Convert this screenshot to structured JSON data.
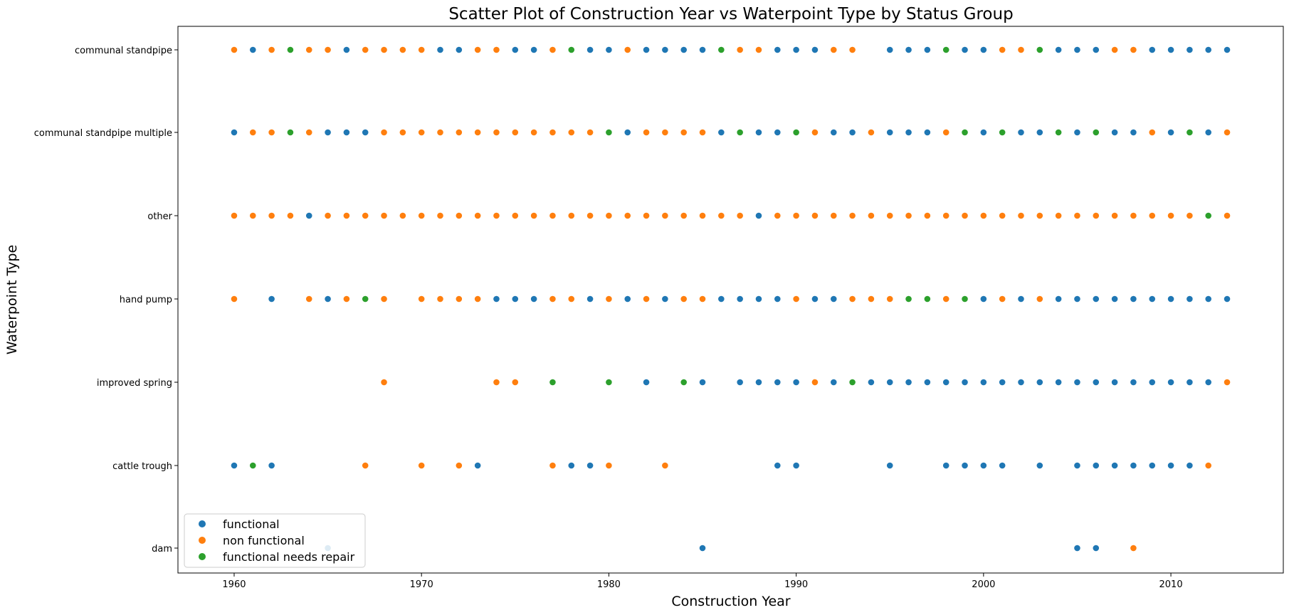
{
  "chart_data": {
    "type": "scatter",
    "title": "Scatter Plot of Construction Year vs Waterpoint Type by Status Group",
    "xlabel": "Construction Year",
    "ylabel": "Waterpoint Type",
    "xlim": [
      1957,
      2016
    ],
    "xticks": [
      1960,
      1970,
      1980,
      1990,
      2000,
      2010
    ],
    "categories": [
      "communal standpipe",
      "communal standpipe multiple",
      "other",
      "hand pump",
      "improved spring",
      "cattle trough",
      "dam"
    ],
    "legend_position": "lower-left",
    "grid": false,
    "series": [
      {
        "name": "functional",
        "color": "#1f77b4",
        "points": {
          "communal standpipe": [
            1961,
            1966,
            1971,
            1972,
            1975,
            1976,
            1979,
            1980,
            1982,
            1983,
            1984,
            1985,
            1989,
            1990,
            1991,
            1995,
            1996,
            1997,
            1999,
            2000,
            2004,
            2005,
            2006,
            2009,
            2010,
            2011,
            2012,
            2013
          ],
          "communal standpipe multiple": [
            1960,
            1965,
            1966,
            1967,
            1981,
            1986,
            1988,
            1989,
            1992,
            1993,
            1995,
            1996,
            1997,
            2000,
            2002,
            2003,
            2005,
            2006,
            2007,
            2008,
            2010,
            2012
          ],
          "other": [
            1964,
            1988
          ],
          "hand pump": [
            1962,
            1965,
            1974,
            1975,
            1976,
            1979,
            1981,
            1983,
            1986,
            1987,
            1988,
            1989,
            1991,
            1992,
            2000,
            2002,
            2004,
            2005,
            2006,
            2007,
            2008,
            2009,
            2010,
            2011,
            2012,
            2013
          ],
          "improved spring": [
            1982,
            1985,
            1987,
            1988,
            1989,
            1990,
            1992,
            1994,
            1995,
            1996,
            1997,
            1998,
            1999,
            2000,
            2001,
            2002,
            2003,
            2004,
            2005,
            2006,
            2007,
            2008,
            2009,
            2010,
            2011,
            2012
          ],
          "cattle trough": [
            1960,
            1962,
            1973,
            1978,
            1979,
            1989,
            1990,
            1995,
            1998,
            1999,
            2000,
            2001,
            2003,
            2005,
            2006,
            2007,
            2008,
            2009,
            2010,
            2011
          ],
          "dam": [
            1965,
            1985,
            2005,
            2006
          ]
        }
      },
      {
        "name": "non functional",
        "color": "#ff7f0e",
        "points": {
          "communal standpipe": [
            1960,
            1962,
            1964,
            1965,
            1967,
            1968,
            1969,
            1970,
            1973,
            1974,
            1977,
            1981,
            1987,
            1988,
            1992,
            1993,
            2001,
            2002,
            2007,
            2008
          ],
          "communal standpipe multiple": [
            1961,
            1962,
            1964,
            1968,
            1969,
            1970,
            1971,
            1972,
            1973,
            1974,
            1975,
            1976,
            1977,
            1978,
            1979,
            1982,
            1983,
            1984,
            1985,
            1991,
            1994,
            1998,
            2009,
            2013
          ],
          "other": [
            1960,
            1961,
            1962,
            1963,
            1965,
            1966,
            1967,
            1968,
            1969,
            1970,
            1971,
            1972,
            1973,
            1974,
            1975,
            1976,
            1977,
            1978,
            1979,
            1980,
            1981,
            1982,
            1983,
            1984,
            1985,
            1986,
            1987,
            1989,
            1990,
            1991,
            1992,
            1993,
            1994,
            1995,
            1996,
            1997,
            1998,
            1999,
            2000,
            2001,
            2002,
            2003,
            2004,
            2005,
            2006,
            2007,
            2008,
            2009,
            2010,
            2011,
            2013
          ],
          "hand pump": [
            1960,
            1964,
            1966,
            1968,
            1970,
            1971,
            1972,
            1973,
            1977,
            1978,
            1980,
            1982,
            1984,
            1985,
            1990,
            1993,
            1994,
            1995,
            1998,
            2001,
            2003
          ],
          "improved spring": [
            1968,
            1974,
            1975,
            1991,
            2013
          ],
          "cattle trough": [
            1967,
            1970,
            1972,
            1977,
            1980,
            1983,
            2012
          ],
          "dam": [
            2008
          ]
        }
      },
      {
        "name": "functional needs repair",
        "color": "#2ca02c",
        "points": {
          "communal standpipe": [
            1963,
            1978,
            1986,
            1998,
            2003
          ],
          "communal standpipe multiple": [
            1963,
            1980,
            1987,
            1990,
            1999,
            2001,
            2004,
            2006,
            2011
          ],
          "other": [
            2012
          ],
          "hand pump": [
            1967,
            1996,
            1997,
            1999
          ],
          "improved spring": [
            1977,
            1980,
            1984,
            1993
          ],
          "cattle trough": [
            1961
          ],
          "dam": []
        }
      }
    ]
  }
}
